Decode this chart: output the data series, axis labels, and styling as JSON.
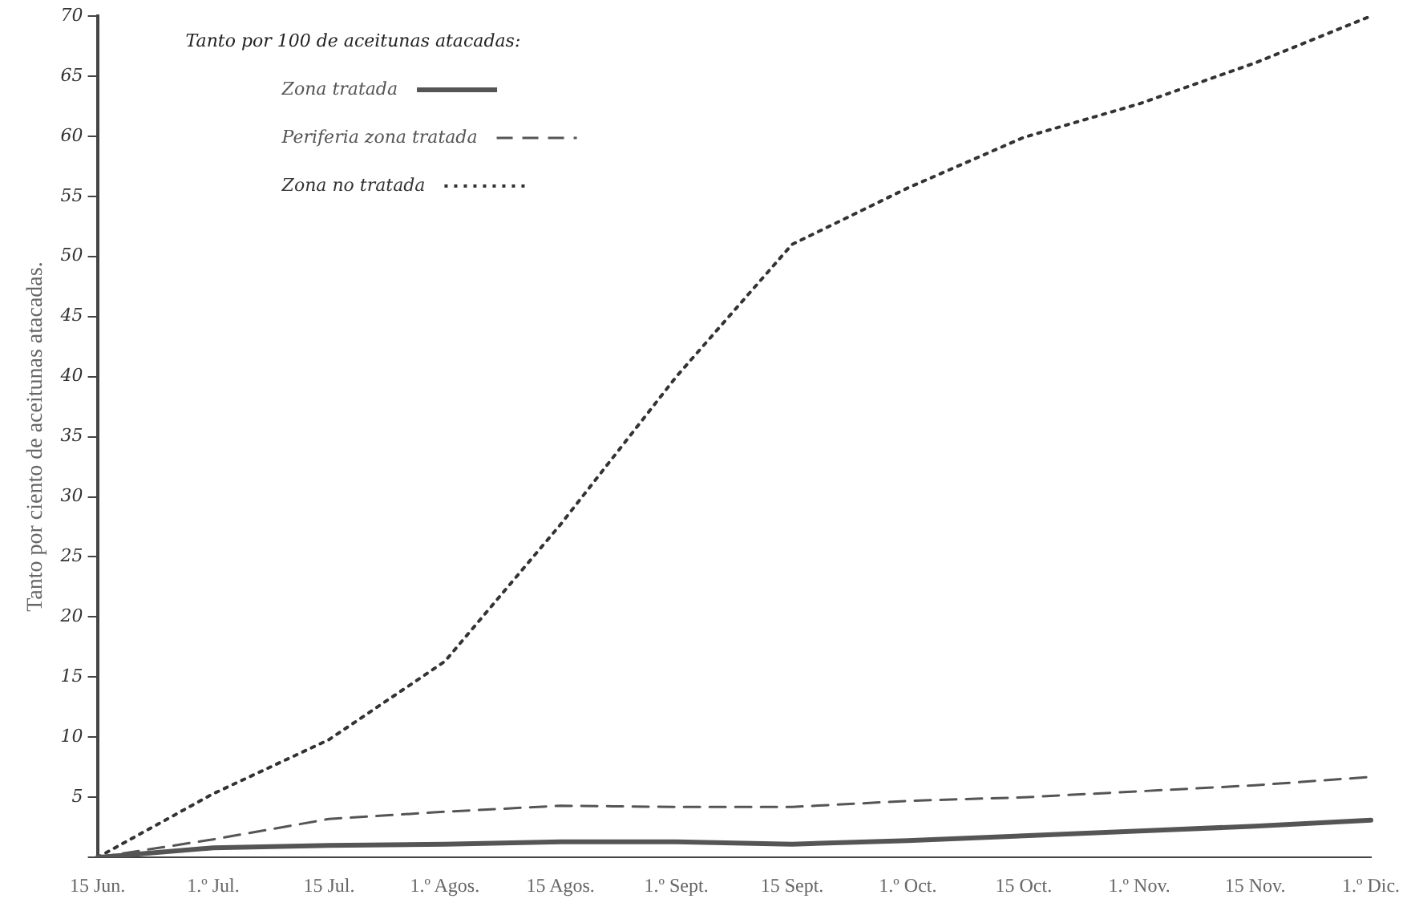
{
  "chart_data": {
    "type": "line",
    "ylabel": "Tanto por ciento de aceitunas atacadas.",
    "legend_title": "Tanto por 100 de aceitunas atacadas:",
    "legend": "top left",
    "grid": false,
    "marker": "none",
    "categories": [
      "15 Jun.",
      "1.º Jul.",
      "15 Jul.",
      "1.º Agos.",
      "15 Agos.",
      "1.º Sept.",
      "15 Sept.",
      "1.º Oct.",
      "15 Oct.",
      "1.º Nov.",
      "15 Nov.",
      "1.º Dic."
    ],
    "ylim": [
      0,
      70
    ],
    "yticks": [
      {
        "value": 0,
        "label": null
      },
      5,
      10,
      15,
      20,
      25,
      30,
      35,
      40,
      45,
      50,
      55,
      60,
      65,
      70
    ],
    "series": [
      {
        "name": "Zona tratada",
        "color": "#555555",
        "line_style": "solid",
        "values": [
          0,
          0.8,
          1.0,
          1.1,
          1.3,
          1.3,
          1.1,
          1.4,
          1.8,
          2.2,
          2.6,
          3.1
        ]
      },
      {
        "name": "Periferia zona tratada",
        "color": "#555555",
        "line_style": "dashed",
        "values": [
          0,
          1.5,
          3.2,
          3.8,
          4.3,
          4.2,
          4.2,
          4.7,
          5.0,
          5.5,
          6.0,
          6.7
        ]
      },
      {
        "name": "Zona no tratada",
        "color": "#333333",
        "line_style": "dotted",
        "values": [
          0,
          5.3,
          9.8,
          16.3,
          27.7,
          40,
          51,
          55.7,
          59.9,
          62.7,
          66.1,
          70
        ]
      }
    ]
  }
}
